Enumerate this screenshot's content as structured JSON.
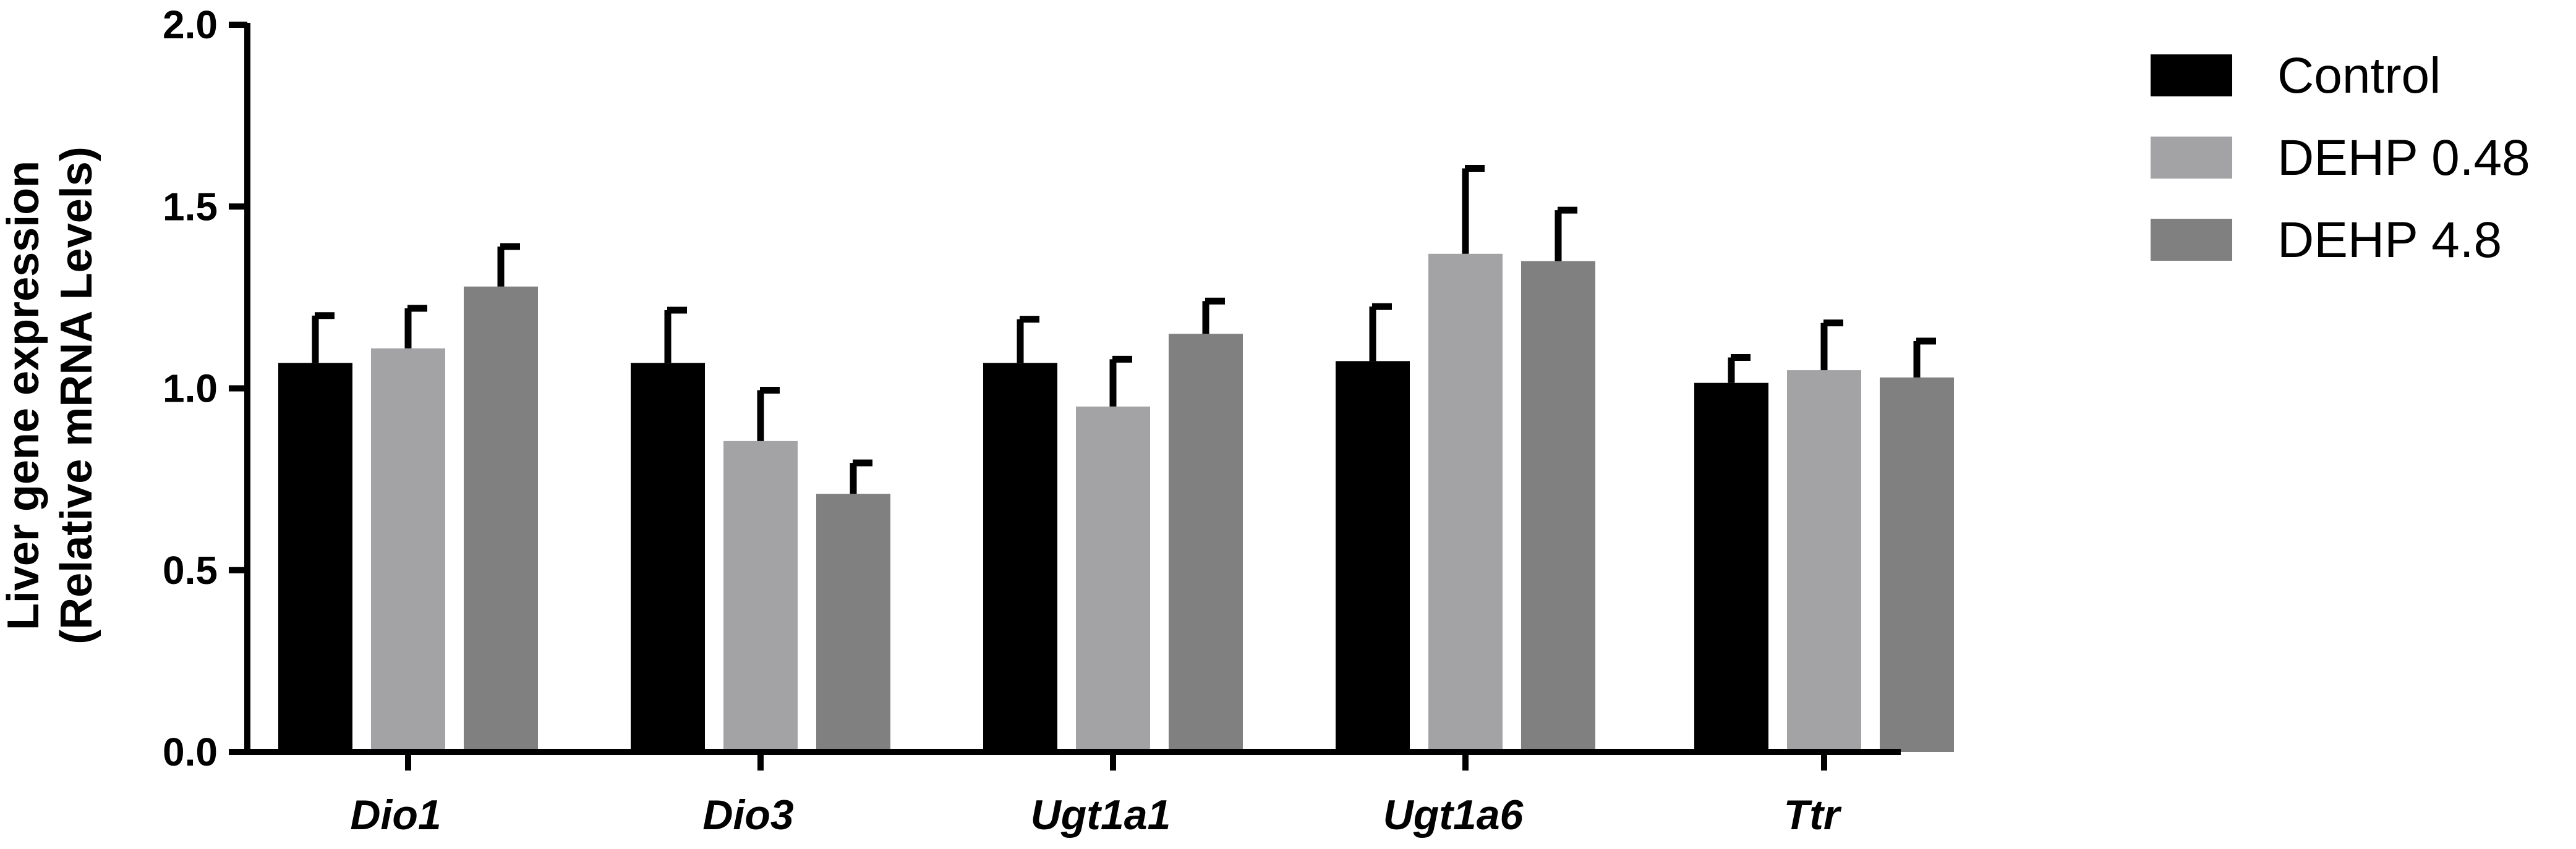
{
  "chart_data": {
    "type": "bar",
    "title": "",
    "xlabel": "",
    "ylabel_line1": "Liver gene expression",
    "ylabel_line2": "(Relative mRNA Levels)",
    "ylim": [
      0,
      2.0
    ],
    "yticks": [
      "0.0",
      "0.5",
      "1.0",
      "1.5",
      "2.0"
    ],
    "categories": [
      "Dio1",
      "Dio3",
      "Ugt1a1",
      "Ugt1a6",
      "Ttr"
    ],
    "legend_position": "top-right",
    "series": [
      {
        "name": "Control",
        "color": "#000000",
        "values": [
          1.07,
          1.07,
          1.07,
          1.075,
          1.015
        ],
        "errors": [
          0.13,
          0.145,
          0.12,
          0.15,
          0.07
        ]
      },
      {
        "name": "DEHP 0.48",
        "color": "#a3a3a6",
        "values": [
          1.11,
          0.855,
          0.95,
          1.37,
          1.05
        ],
        "errors": [
          0.11,
          0.14,
          0.13,
          0.235,
          0.13
        ]
      },
      {
        "name": "DEHP 4.8",
        "color": "#808080",
        "values": [
          1.28,
          0.71,
          1.15,
          1.35,
          1.03
        ],
        "errors": [
          0.11,
          0.085,
          0.09,
          0.14,
          0.1
        ]
      }
    ]
  }
}
